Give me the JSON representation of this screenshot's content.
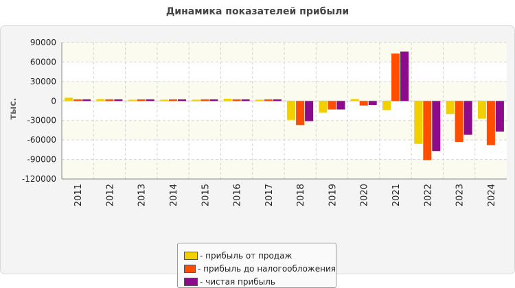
{
  "chart_data": {
    "type": "bar",
    "title": "Динамика показателей прибыли",
    "ylabel": "тыс.",
    "xlabel": "",
    "ylim": [
      -120000,
      90000
    ],
    "yticks": [
      90000,
      60000,
      30000,
      0,
      -30000,
      -60000,
      -90000,
      -120000
    ],
    "ytick_labels": [
      "90000",
      "60000",
      "30000",
      "0",
      "-30000",
      "-60000",
      "-90000",
      "-120000"
    ],
    "grid": true,
    "legend_position": "bottom",
    "categories": [
      "2011",
      "2012",
      "2013",
      "2014",
      "2015",
      "2016",
      "2017",
      "2018",
      "2019",
      "2020",
      "2021",
      "2022",
      "2023",
      "2024"
    ],
    "series": [
      {
        "name": "- прибыль от продаж",
        "color": "#f2d000",
        "values": [
          5000,
          3000,
          2000,
          2000,
          2000,
          3500,
          2000,
          -29000,
          -18000,
          3000,
          -14000,
          -66000,
          -20000,
          -27000
        ]
      },
      {
        "name": "- прибыль до налогообложения",
        "color": "#ff4e00",
        "values": [
          2500,
          2500,
          2500,
          2500,
          2500,
          2500,
          2500,
          -37000,
          -13000,
          -7000,
          73000,
          -91000,
          -63000,
          -68000
        ]
      },
      {
        "name": "- чистая прибыль",
        "color": "#8b0b8b",
        "values": [
          2500,
          2500,
          2500,
          2500,
          2500,
          2500,
          2500,
          -31000,
          -13000,
          -6000,
          76000,
          -77000,
          -52000,
          -47000
        ]
      }
    ]
  }
}
